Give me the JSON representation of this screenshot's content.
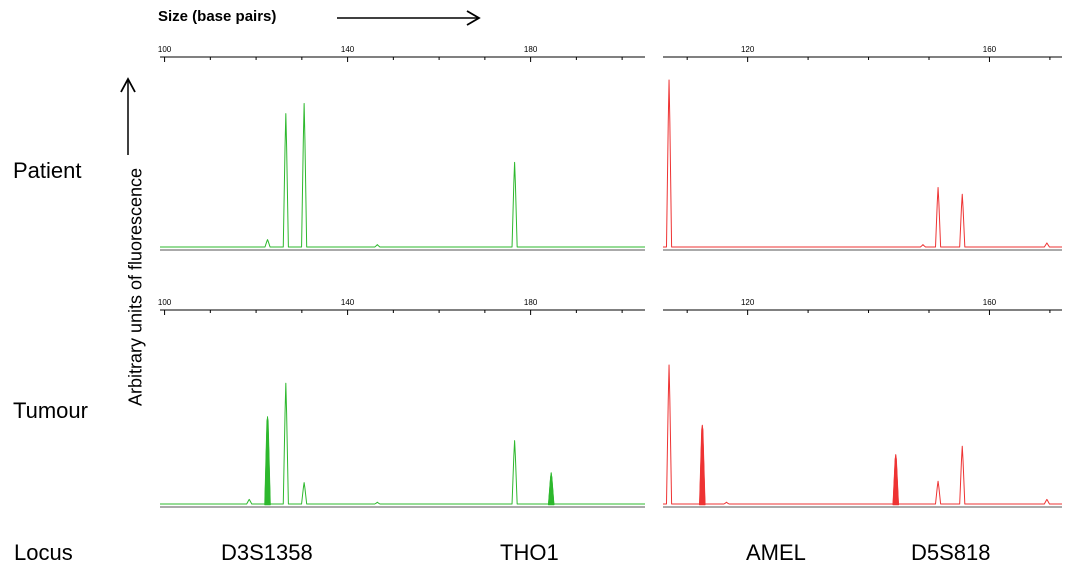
{
  "header": {
    "size_label": "Size (base pairs)"
  },
  "y_axis_label": "Arbitrary units of fluorescence",
  "rows": [
    {
      "label": "Patient"
    },
    {
      "label": "Tumour"
    }
  ],
  "footer": {
    "locus_label": "Locus",
    "loci": [
      "D3S1358",
      "THO1",
      "AMEL",
      "D5S818"
    ]
  },
  "colors": {
    "green_channel": "#2db82d",
    "red_channel": "#ee3333",
    "axis": "#000000"
  },
  "chart_data": [
    {
      "type": "line",
      "panel": "patient-green",
      "x_range": [
        99,
        205
      ],
      "tick_labels": [
        "100",
        "140",
        "180"
      ],
      "ylim": [
        0,
        100
      ],
      "peaks": [
        {
          "x": 122.5,
          "height": 5,
          "fill": false
        },
        {
          "x": 126.5,
          "height": 80,
          "fill": false
        },
        {
          "x": 130.5,
          "height": 86,
          "fill": false
        },
        {
          "x": 146.5,
          "height": 2,
          "fill": false
        },
        {
          "x": 176.5,
          "height": 51,
          "fill": false
        }
      ]
    },
    {
      "type": "line",
      "panel": "patient-red",
      "x_range": [
        106,
        172
      ],
      "tick_labels": [
        "120",
        "160"
      ],
      "ylim": [
        0,
        100
      ],
      "peaks": [
        {
          "x": 107.0,
          "height": 100,
          "fill": false
        },
        {
          "x": 149.0,
          "height": 2,
          "fill": false
        },
        {
          "x": 151.5,
          "height": 36,
          "fill": false
        },
        {
          "x": 155.5,
          "height": 32,
          "fill": false
        },
        {
          "x": 169.5,
          "height": 3,
          "fill": false
        }
      ]
    },
    {
      "type": "line",
      "panel": "tumour-green",
      "x_range": [
        99,
        205
      ],
      "tick_labels": [
        "100",
        "140",
        "180"
      ],
      "ylim": [
        0,
        100
      ],
      "peaks": [
        {
          "x": 118.5,
          "height": 4,
          "fill": false
        },
        {
          "x": 122.5,
          "height": 63,
          "fill": true
        },
        {
          "x": 126.5,
          "height": 87,
          "fill": false
        },
        {
          "x": 130.5,
          "height": 16,
          "fill": false
        },
        {
          "x": 146.5,
          "height": 2,
          "fill": false
        },
        {
          "x": 176.5,
          "height": 46,
          "fill": false
        },
        {
          "x": 184.5,
          "height": 23,
          "fill": true
        }
      ]
    },
    {
      "type": "line",
      "panel": "tumour-red",
      "x_range": [
        106,
        172
      ],
      "tick_labels": [
        "120",
        "160"
      ],
      "ylim": [
        0,
        100
      ],
      "peaks": [
        {
          "x": 107.0,
          "height": 100,
          "fill": false
        },
        {
          "x": 112.5,
          "height": 57,
          "fill": true
        },
        {
          "x": 116.5,
          "height": 2,
          "fill": false
        },
        {
          "x": 144.5,
          "height": 36,
          "fill": true
        },
        {
          "x": 151.5,
          "height": 17,
          "fill": false
        },
        {
          "x": 155.5,
          "height": 42,
          "fill": false
        },
        {
          "x": 169.5,
          "height": 4,
          "fill": false
        }
      ]
    }
  ]
}
